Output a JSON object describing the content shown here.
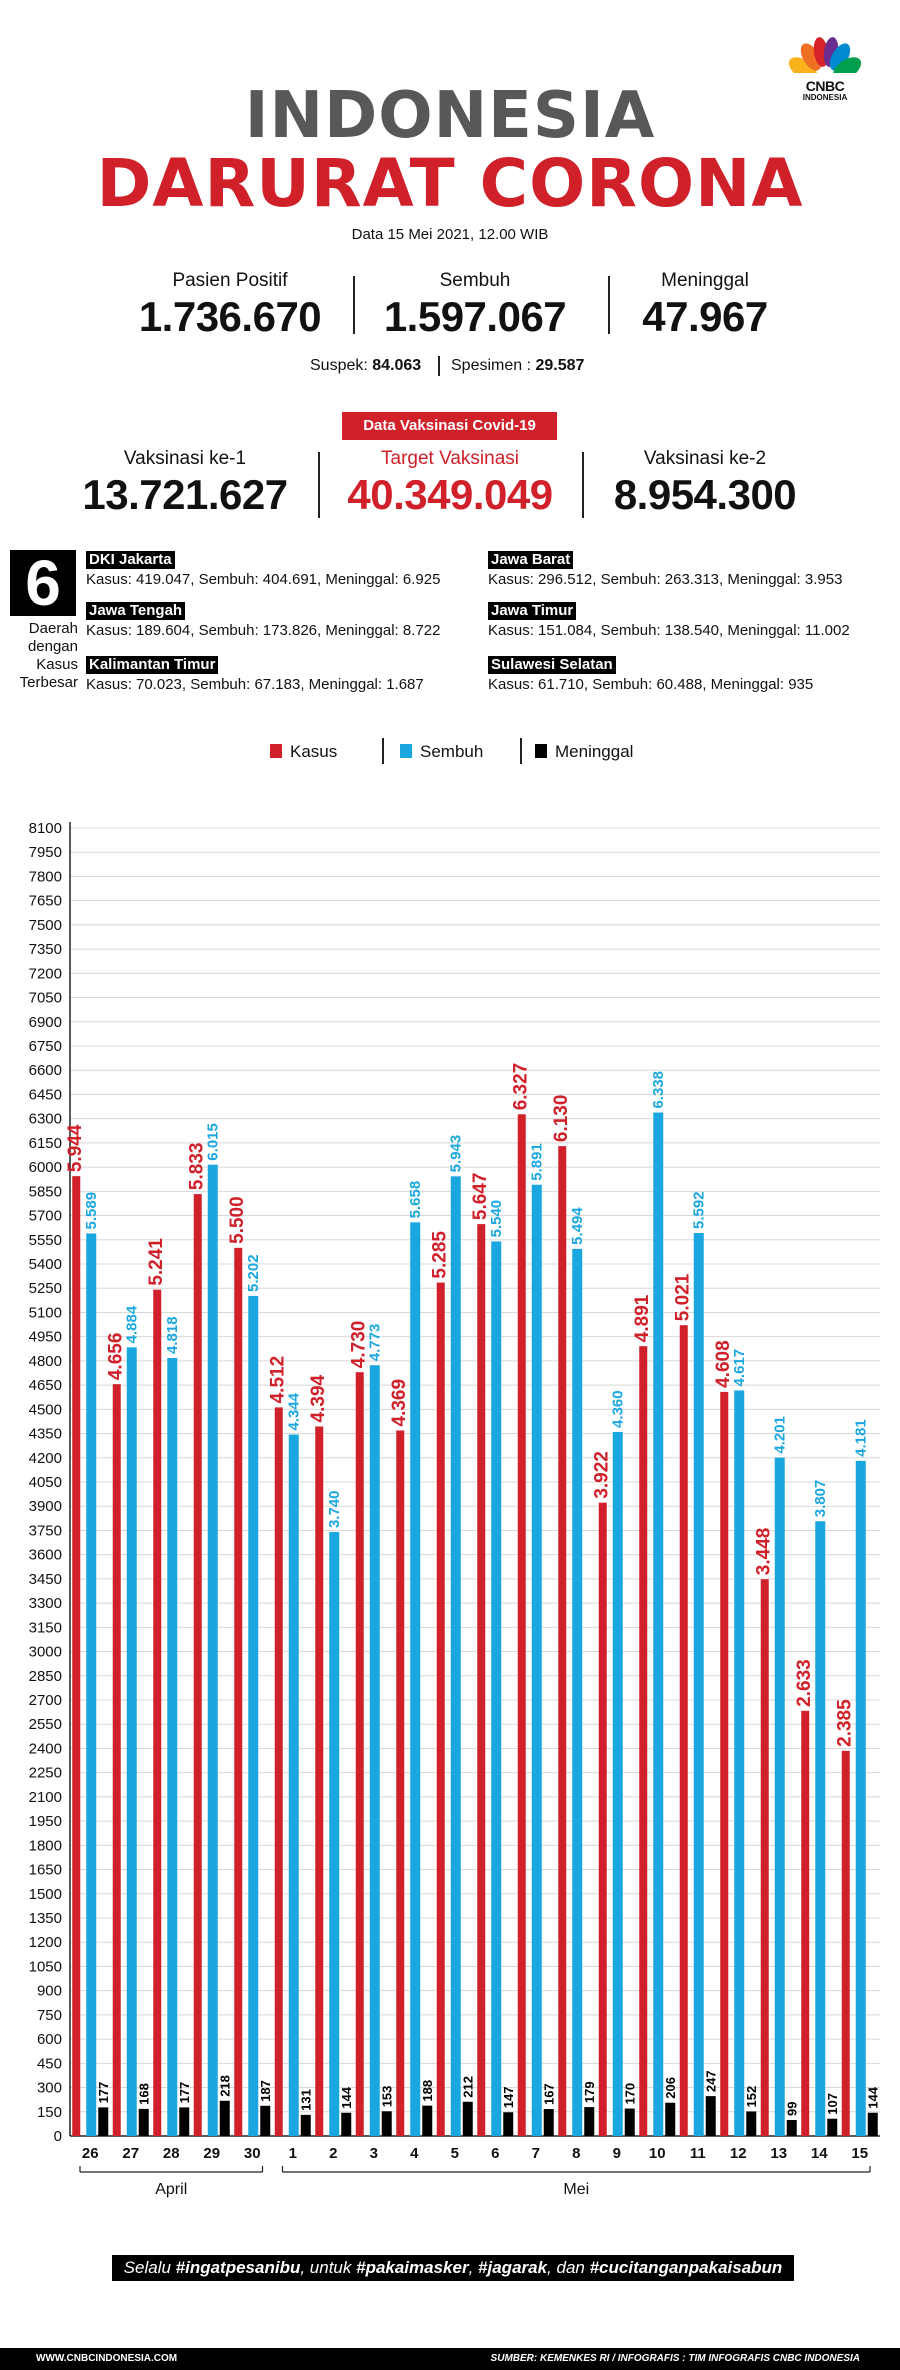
{
  "logo": {
    "text": "CNBC",
    "sub": "INDONESIA"
  },
  "header": {
    "title1": "INDONESIA",
    "title2": "DARURAT CORONA",
    "date": "Data 15 Mei 2021, 12.00 WIB"
  },
  "stats": {
    "positif_label": "Pasien Positif",
    "positif_value": "1.736.670",
    "sembuh_label": "Sembuh",
    "sembuh_value": "1.597.067",
    "meninggal_label": "Meninggal",
    "meninggal_value": "47.967",
    "suspek_label": "Suspek:",
    "suspek_value": "84.063",
    "spesimen_label": "Spesimen :",
    "spesimen_value": "29.587"
  },
  "vaksinasi": {
    "title": "Data Vaksinasi Covid-19",
    "dosis1_label": "Vaksinasi ke-1",
    "dosis1_value": "13.721.627",
    "target_label": "Target Vaksinasi",
    "target_value": "40.349.049",
    "dosis2_label": "Vaksinasi ke-2",
    "dosis2_value": "8.954.300"
  },
  "daerah": {
    "count": "6",
    "label": "Daerah dengan Kasus Terbesar",
    "regions": [
      {
        "name": "DKI Jakarta",
        "data": "Kasus: 419.047, Sembuh: 404.691, Meninggal: 6.925"
      },
      {
        "name": "Jawa Barat",
        "data": "Kasus: 296.512, Sembuh: 263.313, Meninggal: 3.953"
      },
      {
        "name": "Jawa Tengah",
        "data": "Kasus: 189.604, Sembuh: 173.826, Meninggal: 8.722"
      },
      {
        "name": "Jawa Timur",
        "data": "Kasus: 151.084, Sembuh: 138.540, Meninggal: 11.002"
      },
      {
        "name": "Kalimantan Timur",
        "data": "Kasus: 70.023, Sembuh: 67.183, Meninggal: 1.687"
      },
      {
        "name": "Sulawesi Selatan",
        "data": "Kasus: 61.710, Sembuh: 60.488, Meninggal: 935"
      }
    ]
  },
  "colors": {
    "kasus": "#d0202a",
    "sembuh": "#1aa7e0",
    "meninggal": "#000000",
    "grid": "#d8d8d8"
  },
  "chart_data": {
    "type": "bar",
    "categories": [
      "26",
      "27",
      "28",
      "29",
      "30",
      "1",
      "2",
      "3",
      "4",
      "5",
      "6",
      "7",
      "8",
      "9",
      "10",
      "11",
      "12",
      "13",
      "14",
      "15"
    ],
    "groups": [
      {
        "label": "April",
        "from": 0,
        "to": 4
      },
      {
        "label": "Mei",
        "from": 5,
        "to": 19
      }
    ],
    "series": [
      {
        "name": "Kasus",
        "values": [
          5944,
          4656,
          5241,
          5833,
          5500,
          4512,
          4394,
          4730,
          4369,
          5285,
          5647,
          6327,
          6130,
          3922,
          4891,
          5021,
          4608,
          3448,
          2633,
          2385
        ]
      },
      {
        "name": "Sembuh",
        "values": [
          5589,
          4884,
          4818,
          6015,
          5202,
          4344,
          3740,
          4773,
          5658,
          5943,
          5540,
          5891,
          5494,
          4360,
          6338,
          5592,
          4617,
          4201,
          3807,
          4181
        ]
      },
      {
        "name": "Meninggal",
        "values": [
          177,
          168,
          177,
          218,
          187,
          131,
          144,
          153,
          188,
          212,
          147,
          167,
          179,
          170,
          206,
          247,
          152,
          99,
          107,
          144
        ]
      }
    ],
    "labels": [
      {
        "kasus": "5.944",
        "sembuh": "5.589",
        "meninggal": "177"
      },
      {
        "kasus": "4.656",
        "sembuh": "4.884",
        "meninggal": "168"
      },
      {
        "kasus": "5.241",
        "sembuh": "4.818",
        "meninggal": "177"
      },
      {
        "kasus": "5.833",
        "sembuh": "6.015",
        "meninggal": "218"
      },
      {
        "kasus": "5.500",
        "sembuh": "5.202",
        "meninggal": "187"
      },
      {
        "kasus": "4.512",
        "sembuh": "4.344",
        "meninggal": "131"
      },
      {
        "kasus": "4.394",
        "sembuh": "3.740",
        "meninggal": "144"
      },
      {
        "kasus": "4.730",
        "sembuh": "4.773",
        "meninggal": "153"
      },
      {
        "kasus": "4.369",
        "sembuh": "5.658",
        "meninggal": "188"
      },
      {
        "kasus": "5.285",
        "sembuh": "5.943",
        "meninggal": "212"
      },
      {
        "kasus": "5.647",
        "sembuh": "5.540",
        "meninggal": "147"
      },
      {
        "kasus": "6.327",
        "sembuh": "5.891",
        "meninggal": "167"
      },
      {
        "kasus": "6.130",
        "sembuh": "5.494",
        "meninggal": "179"
      },
      {
        "kasus": "3.922",
        "sembuh": "4.360",
        "meninggal": "170"
      },
      {
        "kasus": "4.891",
        "sembuh": "6.338",
        "meninggal": "206"
      },
      {
        "kasus": "5.021",
        "sembuh": "5.592",
        "meninggal": "247"
      },
      {
        "kasus": "4.608",
        "sembuh": "4.617",
        "meninggal": "152"
      },
      {
        "kasus": "3.448",
        "sembuh": "4.201",
        "meninggal": "99"
      },
      {
        "kasus": "2.633",
        "sembuh": "3.807",
        "meninggal": "107"
      },
      {
        "kasus": "2.385",
        "sembuh": "4.181",
        "meninggal": "144"
      }
    ],
    "ylim": [
      0,
      8100
    ],
    "ytick_step": 150,
    "grid": true,
    "legend_position": "top"
  },
  "footer": {
    "prefix": "Selalu ",
    "tag1": "#ingatpesanibu",
    "mid1": ", untuk ",
    "tag2": "#pakaimasker",
    "mid2": ", ",
    "tag3": "#jagarak",
    "mid3": ", dan ",
    "tag4": "#cucitanganpakaisabun",
    "site": "WWW.CNBCINDONESIA.COM",
    "source": "SUMBER: KEMENKES RI / INFOGRAFIS : TIM INFOGRAFIS CNBC INDONESIA"
  }
}
